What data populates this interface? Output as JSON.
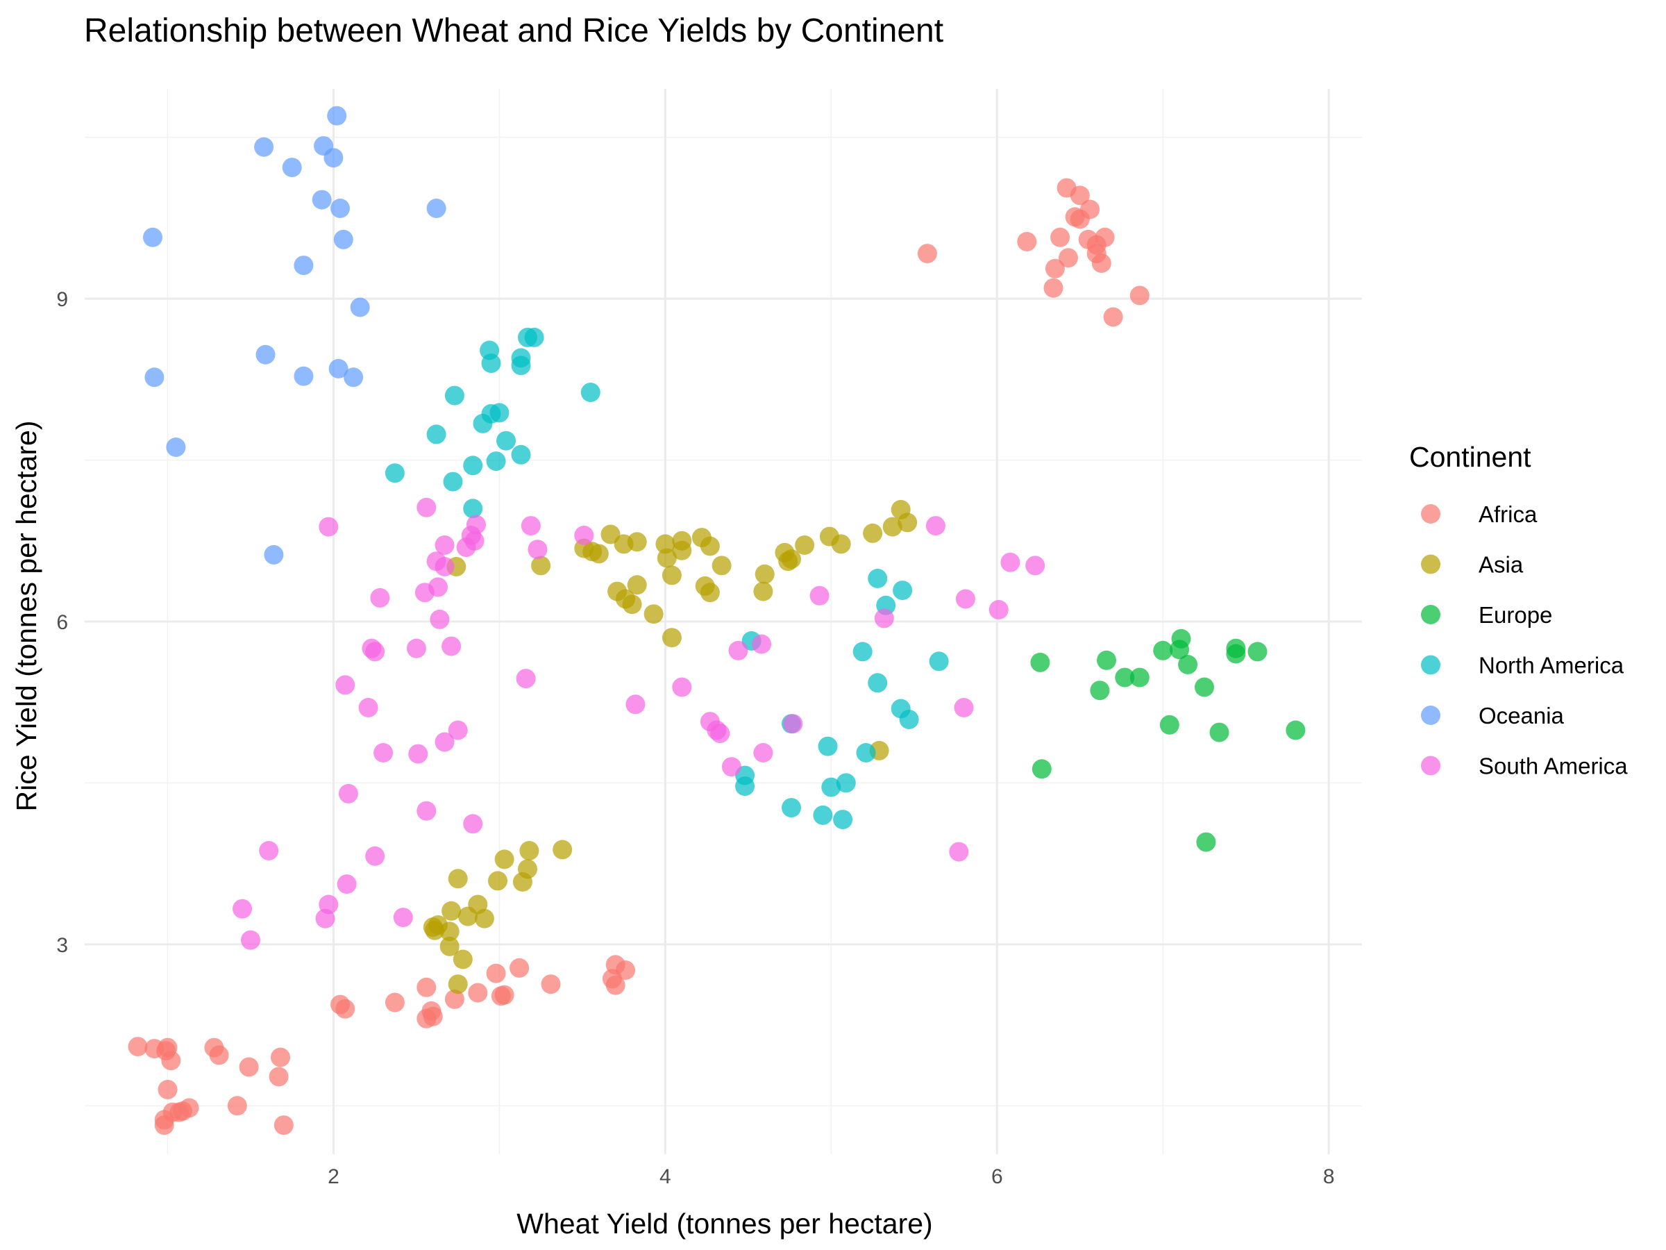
{
  "chart_data": {
    "type": "scatter",
    "title": "Relationship between Wheat and Rice Yields by Continent",
    "xlabel": "Wheat Yield (tonnes per hectare)",
    "ylabel": "Rice Yield (tonnes per hectare)",
    "xlim": [
      0.5,
      8.2
    ],
    "ylim": [
      1.05,
      10.95
    ],
    "x_ticks": [
      2,
      4,
      6,
      8
    ],
    "y_ticks": [
      3,
      6,
      9
    ],
    "x_tick_labels": [
      "2",
      "4",
      "6",
      "8"
    ],
    "y_tick_labels": [
      "3",
      "6",
      "9"
    ],
    "grid": true,
    "legend": {
      "title": "Continent",
      "position": "right"
    },
    "series": [
      {
        "name": "Africa",
        "color": "#F8766D",
        "points": [
          [
            6.42,
            10.03
          ],
          [
            6.5,
            9.96
          ],
          [
            6.56,
            9.83
          ],
          [
            6.47,
            9.76
          ],
          [
            6.5,
            9.74
          ],
          [
            6.38,
            9.57
          ],
          [
            6.55,
            9.55
          ],
          [
            6.6,
            9.5
          ],
          [
            6.65,
            9.57
          ],
          [
            6.18,
            9.53
          ],
          [
            5.58,
            9.42
          ],
          [
            6.6,
            9.42
          ],
          [
            6.43,
            9.38
          ],
          [
            6.35,
            9.28
          ],
          [
            6.63,
            9.33
          ],
          [
            6.34,
            9.1
          ],
          [
            6.86,
            9.03
          ],
          [
            6.7,
            8.83
          ],
          [
            0.82,
            2.05
          ],
          [
            0.92,
            2.03
          ],
          [
            1.0,
            2.04
          ],
          [
            0.99,
            2.01
          ],
          [
            1.02,
            1.92
          ],
          [
            1.28,
            2.04
          ],
          [
            1.31,
            1.97
          ],
          [
            1.68,
            1.95
          ],
          [
            1.49,
            1.86
          ],
          [
            1.67,
            1.77
          ],
          [
            1.0,
            1.65
          ],
          [
            1.42,
            1.5
          ],
          [
            1.13,
            1.48
          ],
          [
            1.09,
            1.45
          ],
          [
            1.03,
            1.44
          ],
          [
            0.98,
            1.37
          ],
          [
            0.98,
            1.32
          ],
          [
            1.7,
            1.32
          ],
          [
            1.07,
            1.44
          ],
          [
            2.04,
            2.44
          ],
          [
            2.07,
            2.4
          ],
          [
            2.37,
            2.46
          ],
          [
            2.56,
            2.6
          ],
          [
            2.59,
            2.38
          ],
          [
            2.56,
            2.31
          ],
          [
            2.6,
            2.33
          ],
          [
            2.73,
            2.49
          ],
          [
            2.87,
            2.55
          ],
          [
            2.98,
            2.73
          ],
          [
            3.03,
            2.53
          ],
          [
            3.12,
            2.78
          ],
          [
            3.01,
            2.52
          ],
          [
            3.31,
            2.63
          ],
          [
            3.68,
            2.68
          ],
          [
            3.7,
            2.81
          ],
          [
            3.76,
            2.76
          ],
          [
            3.7,
            2.62
          ]
        ]
      },
      {
        "name": "Asia",
        "color": "#B79F00",
        "points": [
          [
            3.67,
            6.81
          ],
          [
            3.83,
            6.74
          ],
          [
            3.75,
            6.72
          ],
          [
            3.51,
            6.68
          ],
          [
            3.56,
            6.65
          ],
          [
            3.6,
            6.63
          ],
          [
            4.0,
            6.72
          ],
          [
            4.1,
            6.75
          ],
          [
            4.22,
            6.78
          ],
          [
            4.27,
            6.7
          ],
          [
            4.01,
            6.59
          ],
          [
            4.1,
            6.66
          ],
          [
            4.34,
            6.52
          ],
          [
            4.04,
            6.43
          ],
          [
            4.6,
            6.44
          ],
          [
            4.72,
            6.64
          ],
          [
            4.76,
            6.58
          ],
          [
            4.84,
            6.71
          ],
          [
            4.99,
            6.79
          ],
          [
            5.06,
            6.72
          ],
          [
            5.25,
            6.82
          ],
          [
            5.42,
            7.04
          ],
          [
            5.46,
            6.92
          ],
          [
            5.37,
            6.88
          ],
          [
            4.74,
            6.56
          ],
          [
            3.25,
            6.52
          ],
          [
            2.74,
            6.51
          ],
          [
            3.71,
            6.28
          ],
          [
            3.83,
            6.34
          ],
          [
            3.76,
            6.21
          ],
          [
            3.8,
            6.16
          ],
          [
            4.24,
            6.33
          ],
          [
            4.27,
            6.27
          ],
          [
            4.59,
            6.28
          ],
          [
            3.93,
            6.07
          ],
          [
            4.04,
            5.85
          ],
          [
            5.29,
            4.8
          ],
          [
            3.38,
            3.88
          ],
          [
            3.18,
            3.87
          ],
          [
            3.03,
            3.79
          ],
          [
            3.17,
            3.7
          ],
          [
            2.75,
            3.61
          ],
          [
            2.99,
            3.59
          ],
          [
            3.14,
            3.58
          ],
          [
            2.87,
            3.37
          ],
          [
            2.71,
            3.31
          ],
          [
            2.81,
            3.26
          ],
          [
            2.91,
            3.24
          ],
          [
            2.6,
            3.16
          ],
          [
            2.63,
            3.18
          ],
          [
            2.61,
            3.13
          ],
          [
            2.7,
            3.12
          ],
          [
            2.7,
            2.98
          ],
          [
            2.78,
            2.86
          ],
          [
            2.75,
            2.63
          ]
        ]
      },
      {
        "name": "Europe",
        "color": "#00BA38",
        "points": [
          [
            7.11,
            5.84
          ],
          [
            7.0,
            5.73
          ],
          [
            7.1,
            5.74
          ],
          [
            7.44,
            5.75
          ],
          [
            7.57,
            5.72
          ],
          [
            7.44,
            5.7
          ],
          [
            7.15,
            5.6
          ],
          [
            6.26,
            5.62
          ],
          [
            6.66,
            5.64
          ],
          [
            6.77,
            5.48
          ],
          [
            6.86,
            5.48
          ],
          [
            6.62,
            5.36
          ],
          [
            7.25,
            5.39
          ],
          [
            7.04,
            5.04
          ],
          [
            7.34,
            4.97
          ],
          [
            7.8,
            4.99
          ],
          [
            6.27,
            4.63
          ],
          [
            7.26,
            3.95
          ]
        ]
      },
      {
        "name": "North America",
        "color": "#00BFC4",
        "points": [
          [
            3.17,
            8.64
          ],
          [
            3.21,
            8.64
          ],
          [
            2.94,
            8.52
          ],
          [
            3.13,
            8.45
          ],
          [
            2.95,
            8.4
          ],
          [
            3.13,
            8.38
          ],
          [
            3.55,
            8.13
          ],
          [
            2.73,
            8.1
          ],
          [
            3.0,
            7.94
          ],
          [
            2.95,
            7.93
          ],
          [
            2.9,
            7.84
          ],
          [
            2.62,
            7.74
          ],
          [
            3.04,
            7.68
          ],
          [
            3.13,
            7.55
          ],
          [
            2.98,
            7.49
          ],
          [
            2.84,
            7.45
          ],
          [
            2.37,
            7.38
          ],
          [
            2.72,
            7.3
          ],
          [
            2.84,
            7.05
          ],
          [
            5.28,
            6.4
          ],
          [
            5.43,
            6.29
          ],
          [
            5.33,
            6.15
          ],
          [
            5.65,
            5.63
          ],
          [
            5.19,
            5.72
          ],
          [
            5.28,
            5.43
          ],
          [
            5.42,
            5.19
          ],
          [
            5.47,
            5.09
          ],
          [
            4.76,
            5.05
          ],
          [
            4.52,
            5.82
          ],
          [
            4.98,
            4.84
          ],
          [
            5.21,
            4.78
          ],
          [
            4.48,
            4.57
          ],
          [
            4.48,
            4.47
          ],
          [
            5.09,
            4.5
          ],
          [
            5.0,
            4.46
          ],
          [
            4.76,
            4.27
          ],
          [
            4.95,
            4.2
          ],
          [
            5.07,
            4.16
          ]
        ]
      },
      {
        "name": "Oceania",
        "color": "#619CFF",
        "points": [
          [
            2.02,
            10.7
          ],
          [
            1.58,
            10.41
          ],
          [
            1.94,
            10.42
          ],
          [
            2.0,
            10.31
          ],
          [
            1.75,
            10.22
          ],
          [
            1.93,
            9.92
          ],
          [
            2.04,
            9.84
          ],
          [
            2.62,
            9.84
          ],
          [
            0.91,
            9.57
          ],
          [
            2.06,
            9.55
          ],
          [
            1.82,
            9.31
          ],
          [
            2.16,
            8.92
          ],
          [
            1.59,
            8.48
          ],
          [
            2.03,
            8.35
          ],
          [
            1.82,
            8.28
          ],
          [
            2.12,
            8.27
          ],
          [
            0.92,
            8.27
          ],
          [
            1.05,
            7.62
          ],
          [
            1.64,
            6.62
          ]
        ]
      },
      {
        "name": "South America",
        "color": "#F564E3",
        "points": [
          [
            1.97,
            6.88
          ],
          [
            2.56,
            7.06
          ],
          [
            2.86,
            6.9
          ],
          [
            3.19,
            6.89
          ],
          [
            3.51,
            6.8
          ],
          [
            2.83,
            6.8
          ],
          [
            2.85,
            6.75
          ],
          [
            2.67,
            6.71
          ],
          [
            2.8,
            6.69
          ],
          [
            3.23,
            6.67
          ],
          [
            2.62,
            6.56
          ],
          [
            2.67,
            6.51
          ],
          [
            2.28,
            6.22
          ],
          [
            2.55,
            6.27
          ],
          [
            2.63,
            6.32
          ],
          [
            2.64,
            6.02
          ],
          [
            5.63,
            6.89
          ],
          [
            6.08,
            6.55
          ],
          [
            6.23,
            6.52
          ],
          [
            5.81,
            6.21
          ],
          [
            6.01,
            6.11
          ],
          [
            4.93,
            6.24
          ],
          [
            5.32,
            6.03
          ],
          [
            2.23,
            5.75
          ],
          [
            2.25,
            5.72
          ],
          [
            2.5,
            5.75
          ],
          [
            2.71,
            5.77
          ],
          [
            4.44,
            5.73
          ],
          [
            4.58,
            5.79
          ],
          [
            2.07,
            5.41
          ],
          [
            3.16,
            5.47
          ],
          [
            4.1,
            5.39
          ],
          [
            2.21,
            5.2
          ],
          [
            3.82,
            5.23
          ],
          [
            4.27,
            5.07
          ],
          [
            4.31,
            4.99
          ],
          [
            4.33,
            4.96
          ],
          [
            4.77,
            5.05
          ],
          [
            5.8,
            5.2
          ],
          [
            2.75,
            4.99
          ],
          [
            2.67,
            4.88
          ],
          [
            2.3,
            4.78
          ],
          [
            2.51,
            4.77
          ],
          [
            4.59,
            4.78
          ],
          [
            4.4,
            4.65
          ],
          [
            2.09,
            4.4
          ],
          [
            2.56,
            4.24
          ],
          [
            2.84,
            4.12
          ],
          [
            1.61,
            3.87
          ],
          [
            2.25,
            3.82
          ],
          [
            5.77,
            3.86
          ],
          [
            2.08,
            3.56
          ],
          [
            1.97,
            3.37
          ],
          [
            1.45,
            3.33
          ],
          [
            1.95,
            3.24
          ],
          [
            2.42,
            3.25
          ],
          [
            1.5,
            3.04
          ]
        ]
      }
    ]
  }
}
